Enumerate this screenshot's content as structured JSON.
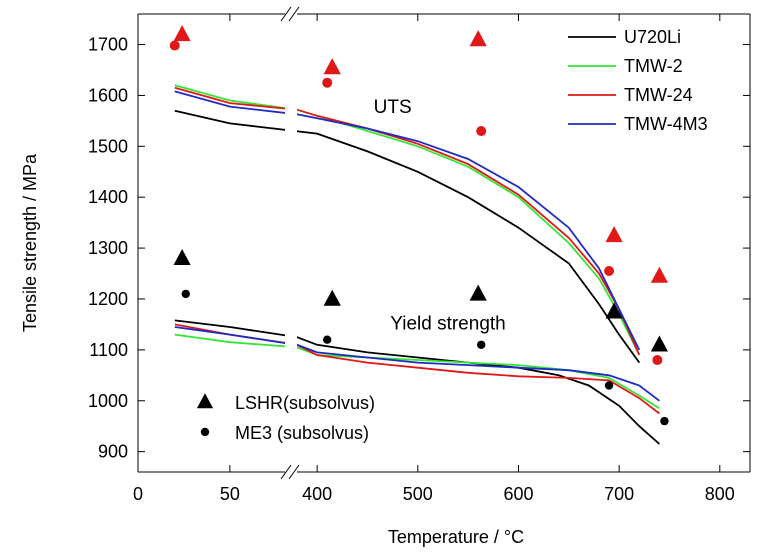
{
  "chart_data": {
    "type": "line",
    "xlabel": "Temperature / °C",
    "ylabel": "Tensile strength / MPa",
    "ylim": [
      860,
      1760
    ],
    "x_axis": {
      "broken": true,
      "break_between": [
        50,
        380
      ],
      "segment1_range": [
        0,
        80
      ],
      "segment2_range": [
        380,
        830
      ],
      "ticks": [
        0,
        50,
        400,
        500,
        600,
        700,
        800
      ],
      "tick_labels": [
        "0",
        "50",
        "400",
        "500",
        "600",
        "700",
        "800"
      ]
    },
    "y_ticks": [
      900,
      1000,
      1100,
      1200,
      1300,
      1400,
      1500,
      1600,
      1700
    ],
    "y_tick_labels": [
      "900",
      "1000",
      "1100",
      "1200",
      "1300",
      "1400",
      "1500",
      "1600",
      "1700"
    ],
    "grid": false,
    "annotations": [
      {
        "text": "UTS",
        "x": 475,
        "y": 1565
      },
      {
        "text": "Yield strength",
        "x": 530,
        "y": 1140
      }
    ],
    "legend_lines": {
      "placement": "top-right",
      "entries": [
        {
          "name": "U720Li",
          "color": "#000000"
        },
        {
          "name": "TMW-2",
          "color": "#33e633"
        },
        {
          "name": "TMW-24",
          "color": "#e01818"
        },
        {
          "name": "TMW-4M3",
          "color": "#1f2bbf"
        }
      ]
    },
    "legend_markers": {
      "placement": "bottom-left",
      "entries": [
        {
          "name": "LSHR(subsolvus)",
          "marker": "triangle"
        },
        {
          "name": "ME3  (subsolvus)",
          "marker": "circle"
        }
      ]
    },
    "series": [
      {
        "name": "U720Li",
        "property": "UTS",
        "color": "#000000",
        "points": [
          [
            20,
            1570
          ],
          [
            50,
            1545
          ],
          [
            400,
            1525
          ],
          [
            450,
            1490
          ],
          [
            500,
            1450
          ],
          [
            550,
            1400
          ],
          [
            600,
            1340
          ],
          [
            650,
            1270
          ],
          [
            680,
            1190
          ],
          [
            700,
            1130
          ],
          [
            720,
            1075
          ]
        ]
      },
      {
        "name": "TMW-2",
        "property": "UTS",
        "color": "#33e633",
        "points": [
          [
            20,
            1620
          ],
          [
            50,
            1590
          ],
          [
            380,
            1572
          ],
          [
            400,
            1560
          ],
          [
            450,
            1530
          ],
          [
            500,
            1500
          ],
          [
            550,
            1460
          ],
          [
            600,
            1400
          ],
          [
            650,
            1310
          ],
          [
            680,
            1240
          ],
          [
            700,
            1170
          ],
          [
            720,
            1090
          ]
        ]
      },
      {
        "name": "TMW-24",
        "property": "UTS",
        "color": "#e01818",
        "points": [
          [
            20,
            1615
          ],
          [
            50,
            1585
          ],
          [
            380,
            1572
          ],
          [
            400,
            1560
          ],
          [
            450,
            1535
          ],
          [
            500,
            1505
          ],
          [
            550,
            1465
          ],
          [
            600,
            1405
          ],
          [
            650,
            1320
          ],
          [
            680,
            1250
          ],
          [
            700,
            1180
          ],
          [
            720,
            1090
          ]
        ]
      },
      {
        "name": "TMW-4M3",
        "property": "UTS",
        "color": "#1f2bbf",
        "points": [
          [
            20,
            1608
          ],
          [
            50,
            1578
          ],
          [
            380,
            1563
          ],
          [
            400,
            1555
          ],
          [
            450,
            1535
          ],
          [
            500,
            1510
          ],
          [
            550,
            1475
          ],
          [
            600,
            1420
          ],
          [
            650,
            1340
          ],
          [
            680,
            1260
          ],
          [
            700,
            1180
          ],
          [
            720,
            1100
          ]
        ]
      },
      {
        "name": "U720Li",
        "property": "Yield strength",
        "color": "#000000",
        "points": [
          [
            20,
            1158
          ],
          [
            50,
            1145
          ],
          [
            380,
            1125
          ],
          [
            400,
            1110
          ],
          [
            450,
            1095
          ],
          [
            500,
            1085
          ],
          [
            550,
            1075
          ],
          [
            600,
            1065
          ],
          [
            640,
            1050
          ],
          [
            670,
            1030
          ],
          [
            700,
            990
          ],
          [
            720,
            950
          ],
          [
            740,
            915
          ]
        ]
      },
      {
        "name": "TMW-2",
        "property": "Yield strength",
        "color": "#33e633",
        "points": [
          [
            20,
            1130
          ],
          [
            50,
            1115
          ],
          [
            380,
            1105
          ],
          [
            400,
            1090
          ],
          [
            450,
            1085
          ],
          [
            500,
            1080
          ],
          [
            550,
            1075
          ],
          [
            600,
            1070
          ],
          [
            650,
            1060
          ],
          [
            690,
            1045
          ],
          [
            720,
            1010
          ],
          [
            740,
            985
          ]
        ]
      },
      {
        "name": "TMW-24",
        "property": "Yield strength",
        "color": "#e01818",
        "points": [
          [
            20,
            1150
          ],
          [
            50,
            1130
          ],
          [
            380,
            1110
          ],
          [
            400,
            1090
          ],
          [
            450,
            1075
          ],
          [
            500,
            1065
          ],
          [
            550,
            1055
          ],
          [
            600,
            1048
          ],
          [
            650,
            1045
          ],
          [
            690,
            1040
          ],
          [
            720,
            1005
          ],
          [
            740,
            975
          ]
        ]
      },
      {
        "name": "TMW-4M3",
        "property": "Yield strength",
        "color": "#1f2bbf",
        "points": [
          [
            20,
            1145
          ],
          [
            50,
            1130
          ],
          [
            380,
            1110
          ],
          [
            400,
            1095
          ],
          [
            450,
            1085
          ],
          [
            500,
            1075
          ],
          [
            550,
            1070
          ],
          [
            600,
            1065
          ],
          [
            650,
            1060
          ],
          [
            690,
            1050
          ],
          [
            720,
            1030
          ],
          [
            740,
            1000
          ]
        ]
      }
    ],
    "markers": [
      {
        "group": "LSHR(subsolvus)",
        "property": "UTS",
        "marker": "triangle",
        "color": "#e01818",
        "points": [
          [
            24,
            1720
          ],
          [
            415,
            1655
          ],
          [
            560,
            1710
          ],
          [
            695,
            1325
          ],
          [
            740,
            1245
          ]
        ]
      },
      {
        "group": "ME3  (subsolvus)",
        "property": "UTS",
        "marker": "circle",
        "color": "#e01818",
        "points": [
          [
            20,
            1698
          ],
          [
            410,
            1625
          ],
          [
            563,
            1530
          ],
          [
            690,
            1255
          ],
          [
            738,
            1080
          ]
        ]
      },
      {
        "group": "LSHR(subsolvus)",
        "property": "Yield strength",
        "marker": "triangle",
        "color": "#000000",
        "points": [
          [
            24,
            1280
          ],
          [
            415,
            1200
          ],
          [
            560,
            1210
          ],
          [
            695,
            1175
          ],
          [
            740,
            1110
          ]
        ]
      },
      {
        "group": "ME3  (subsolvus)",
        "property": "Yield strength",
        "marker": "circle",
        "color": "#000000",
        "points": [
          [
            26,
            1210
          ],
          [
            410,
            1120
          ],
          [
            563,
            1110
          ],
          [
            690,
            1030
          ],
          [
            745,
            960
          ]
        ]
      }
    ]
  }
}
